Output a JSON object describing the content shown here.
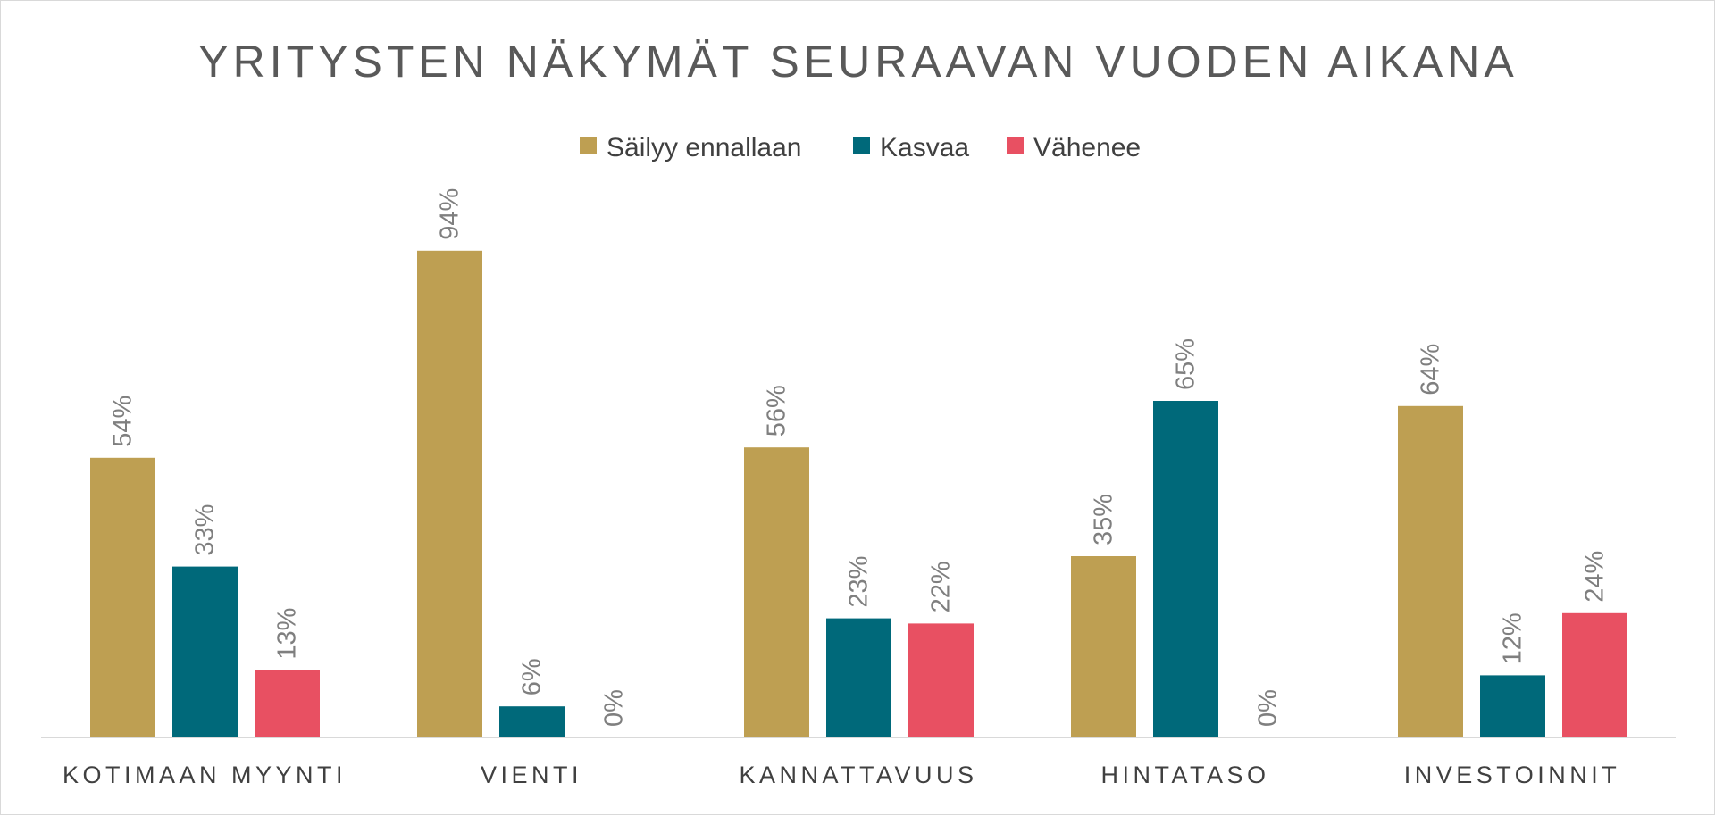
{
  "chart_data": {
    "type": "bar",
    "title": "YRITYSTEN NÄKYMÄT SEURAAVAN VUODEN AIKANA",
    "categories": [
      "KOTIMAAN MYYNTI",
      "VIENTI",
      "KANNATTAVUUS",
      "HINTATASO",
      "INVESTOINNIT"
    ],
    "series": [
      {
        "name": "Säilyy ennallaan",
        "color": "#BE9F52",
        "values": [
          54,
          94,
          56,
          35,
          64
        ]
      },
      {
        "name": "Kasvaa",
        "color": "#00697A",
        "values": [
          33,
          6,
          23,
          65,
          12
        ]
      },
      {
        "name": "Vähenee",
        "color": "#E85062",
        "values": [
          13,
          0,
          22,
          0,
          24
        ]
      }
    ],
    "data_label_format": "{v}%",
    "legend_position": "top",
    "grid": false,
    "ylim": [
      0,
      100
    ],
    "xlabel": "",
    "ylabel": ""
  }
}
